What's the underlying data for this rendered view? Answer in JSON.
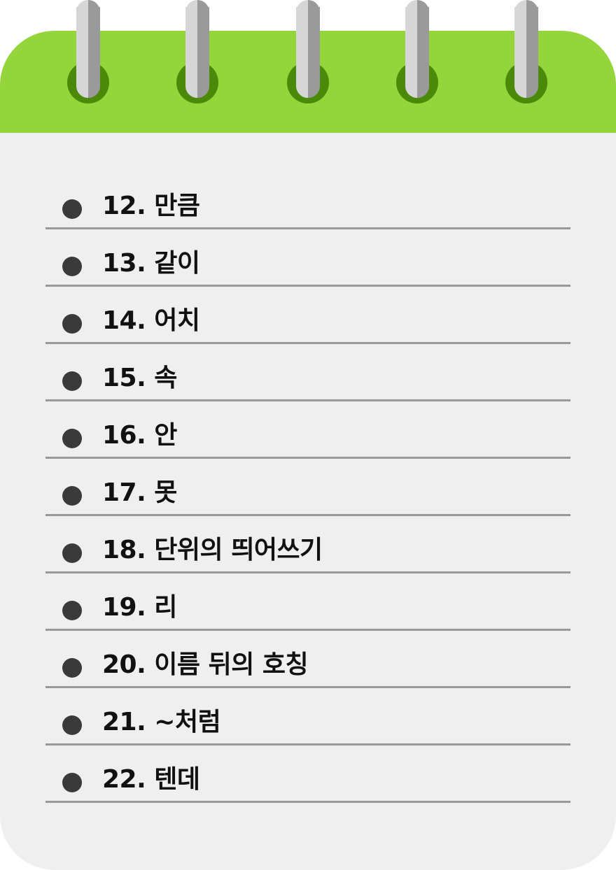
{
  "items": [
    {
      "label": "12. 만큼"
    },
    {
      "label": "13. 같이"
    },
    {
      "label": "14. 어치"
    },
    {
      "label": "15. 속"
    },
    {
      "label": "16. 안"
    },
    {
      "label": "17. 못"
    },
    {
      "label": "18. 단위의 띄어쓰기"
    },
    {
      "label": "19. 리"
    },
    {
      "label": "20. 이름 뒤의 호칭"
    },
    {
      "label": "21. ~처럼"
    },
    {
      "label": "22. 텐데"
    }
  ],
  "colors": {
    "header": "#93d53b",
    "paper": "#efefef",
    "hole": "#4a8a08",
    "rule": "#999999",
    "bullet": "#3a3a3a"
  }
}
